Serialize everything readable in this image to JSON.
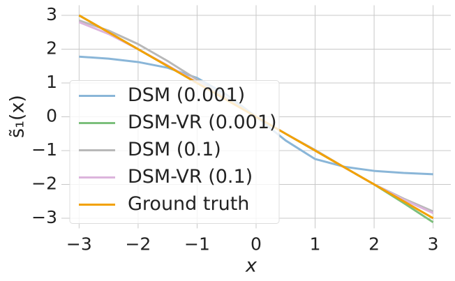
{
  "chart_data": {
    "type": "line",
    "x_label": "x",
    "y_label": "s̃₁(x)",
    "x": [
      -3,
      -2.5,
      -2,
      -1.5,
      -1,
      -0.5,
      0,
      0.5,
      1,
      1.5,
      2,
      2.5,
      3
    ],
    "series": [
      {
        "name": "DSM (0.001)",
        "color": "#8ab6d8",
        "values": [
          1.78,
          1.72,
          1.62,
          1.45,
          1.15,
          0.65,
          0,
          -0.7,
          -1.25,
          -1.48,
          -1.6,
          -1.66,
          -1.7
        ]
      },
      {
        "name": "DSM-VR (0.001)",
        "color": "#7cbf7c",
        "values": [
          3.0,
          2.5,
          2.0,
          1.5,
          1.0,
          0.5,
          0,
          -0.5,
          -1.0,
          -1.5,
          -2.0,
          -2.55,
          -3.12
        ]
      },
      {
        "name": "DSM (0.1)",
        "color": "#b8b8b8",
        "values": [
          2.85,
          2.55,
          2.15,
          1.65,
          1.1,
          0.55,
          0,
          -0.5,
          -0.98,
          -1.5,
          -2.0,
          -2.42,
          -2.8
        ]
      },
      {
        "name": "DSM-VR (0.1)",
        "color": "#dcb4dc",
        "values": [
          2.8,
          2.45,
          2.0,
          1.52,
          1.02,
          0.5,
          0,
          -0.5,
          -1.0,
          -1.5,
          -2.0,
          -2.45,
          -2.85
        ]
      },
      {
        "name": "Ground truth",
        "color": "#f2a100",
        "values": [
          3,
          2.5,
          2,
          1.5,
          1,
          0.5,
          0,
          -0.5,
          -1,
          -1.5,
          -2,
          -2.5,
          -3
        ]
      }
    ],
    "xlim": [
      -3.3,
      3.3
    ],
    "ylim": [
      -3.3,
      3.3
    ],
    "xticks": [
      {
        "value": -3,
        "label": "−3"
      },
      {
        "value": -2,
        "label": "−2"
      },
      {
        "value": -1,
        "label": "−1"
      },
      0,
      1,
      2,
      3
    ],
    "yticks": [
      {
        "value": -3,
        "label": "−3"
      },
      {
        "value": -2,
        "label": "−2"
      },
      {
        "value": -1,
        "label": "−1"
      },
      0,
      1,
      2,
      3
    ],
    "grid": true,
    "legend": "lower left"
  }
}
